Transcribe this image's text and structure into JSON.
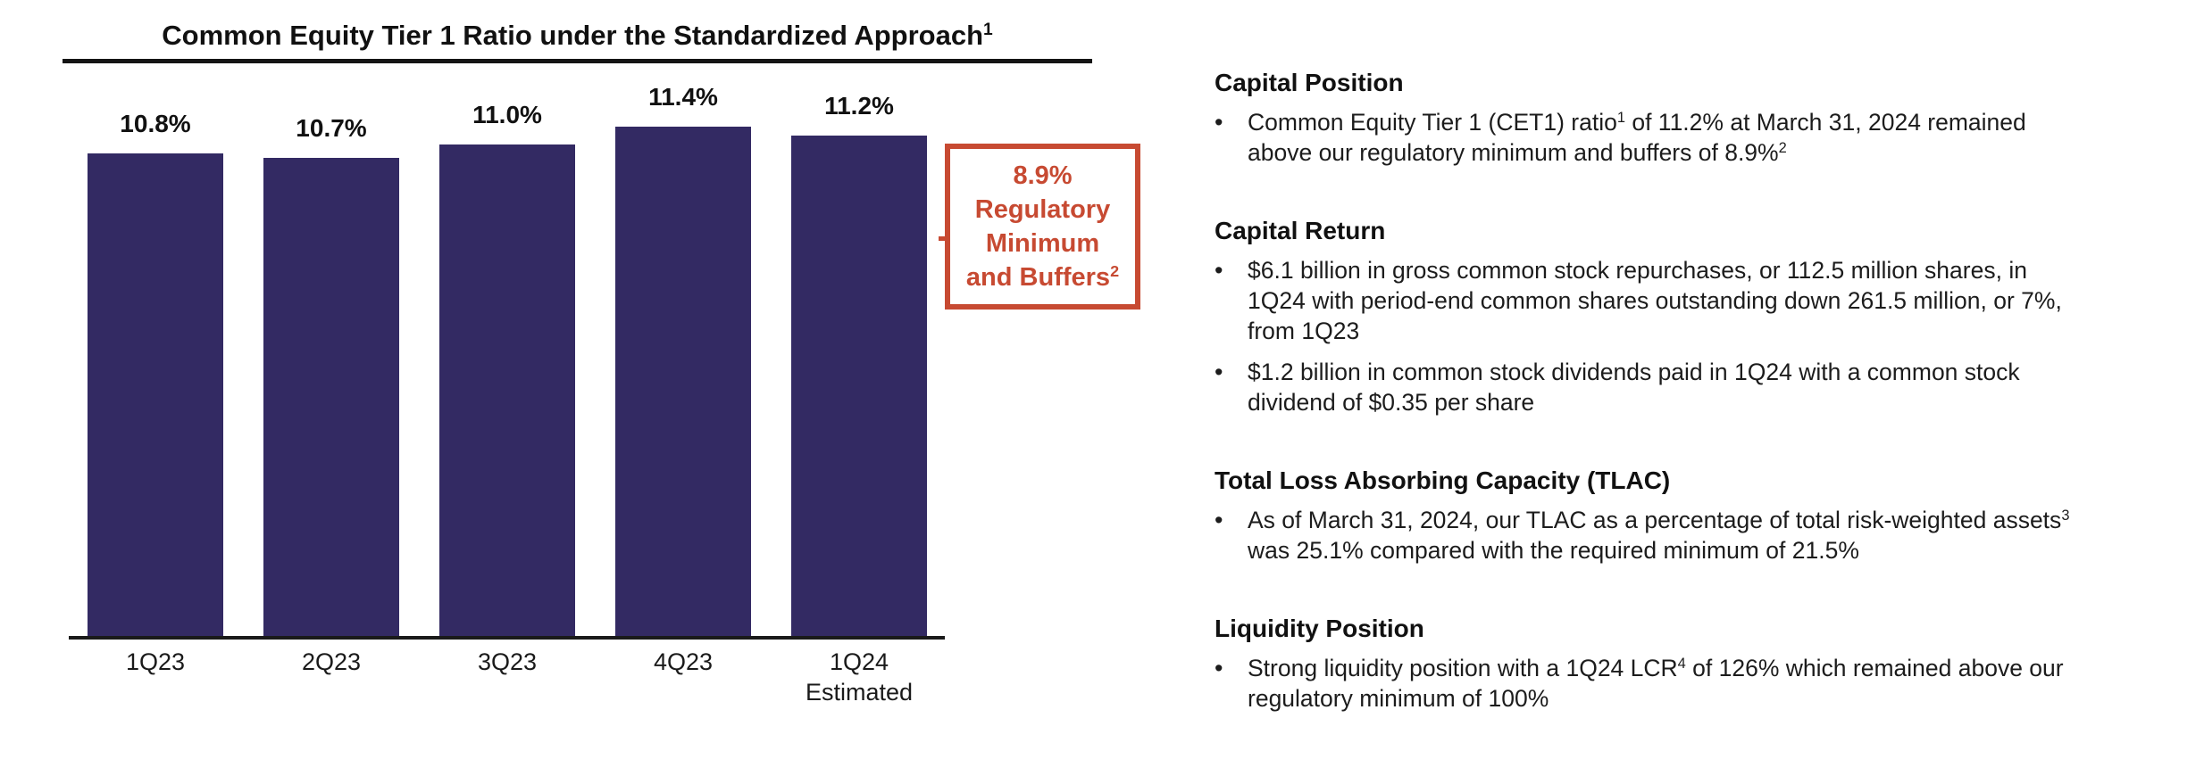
{
  "accent_color": "#C74A32",
  "bar_color": "#332A63",
  "text_color": "#1C1C1C",
  "chart_data": {
    "type": "bar",
    "title": "Common Equity Tier 1 Ratio under the Standardized Approach^1^",
    "categories": [
      "1Q23",
      "2Q23",
      "3Q23",
      "4Q23",
      "1Q24"
    ],
    "last_category_note": "Estimated",
    "values": [
      10.8,
      10.7,
      11.0,
      11.4,
      11.2
    ],
    "value_labels": [
      "10.8%",
      "10.7%",
      "11.0%",
      "11.4%",
      "11.2%"
    ],
    "xlabel": "",
    "ylabel": "",
    "ylim": [
      0,
      12.8
    ],
    "grid": false,
    "legend": "none",
    "bar_color": "#332A63",
    "accent_color": "#C74A32",
    "reference_line": {
      "value": 8.9,
      "style": "dashed",
      "label_lines": [
        "8.9%",
        "Regulatory",
        "Minimum",
        "and Buffers^2^"
      ]
    }
  },
  "notes": {
    "sections": [
      {
        "heading": "Capital Position",
        "bullets": [
          [
            "Common Equity Tier 1 (CET1) ratio^1^ of 11.2% at March 31, 2024 remained",
            "above our regulatory minimum and buffers of 8.9%^2^"
          ]
        ]
      },
      {
        "heading": "Capital Return",
        "bullets": [
          [
            "$6.1 billion in gross common stock repurchases, or 112.5 million shares, in",
            "1Q24 with period-end common shares outstanding down 261.5 million, or 7%,",
            "from 1Q23"
          ],
          [
            "$1.2 billion in common stock dividends paid in 1Q24 with a common stock",
            "dividend of $0.35 per share"
          ]
        ]
      },
      {
        "heading": "Total Loss Absorbing Capacity (TLAC)",
        "bullets": [
          [
            "As of March 31, 2024, our TLAC as a percentage of total risk-weighted assets^3^",
            "was 25.1% compared with the required minimum of 21.5%"
          ]
        ]
      },
      {
        "heading": "Liquidity Position",
        "bullets": [
          [
            "Strong liquidity position with a 1Q24 LCR^4^ of 126% which remained above our",
            "regulatory minimum of 100%"
          ]
        ]
      }
    ]
  }
}
